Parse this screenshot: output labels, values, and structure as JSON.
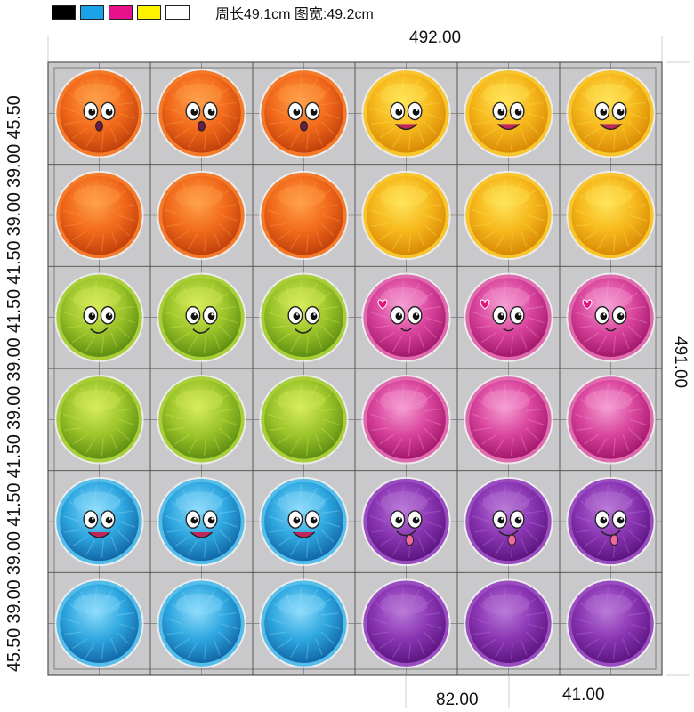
{
  "header": {
    "color_swatches": [
      "#000000",
      "#1aa3e8",
      "#e8118c",
      "#fff200",
      "#ffffff"
    ],
    "size_note": "周长49.1cm  图宽:49.2cm"
  },
  "dimensions": {
    "total_width": "492.00",
    "total_height": "491.00",
    "cell_width": "82.00",
    "half_cell_width": "41.00",
    "left_column_label": "45.50 39.00 39.00 41.50 41.50 39.00 39.00 41.50 41.50 39.00 39.00 45.50"
  },
  "board": {
    "rows": 6,
    "columns": 6,
    "sticker_palettes": {
      "orange": {
        "light": "#ffa14a",
        "mid": "#f26a1b",
        "dark": "#c2410c",
        "rim": "#f47a2a"
      },
      "yellow": {
        "light": "#ffe45a",
        "mid": "#f6b81b",
        "dark": "#d98a06",
        "rim": "#f8c52c"
      },
      "green": {
        "light": "#d7ec5a",
        "mid": "#9cc52a",
        "dark": "#5f8f12",
        "rim": "#a8ce38"
      },
      "pink": {
        "light": "#f59fd3",
        "mid": "#d9449c",
        "dark": "#a3186c",
        "rim": "#e06aae"
      },
      "blue": {
        "light": "#8fdcfb",
        "mid": "#2ea7e0",
        "dark": "#1268a8",
        "rim": "#55bde9"
      },
      "purple": {
        "light": "#b97ad8",
        "mid": "#8a35b3",
        "dark": "#5c1680",
        "rim": "#9a4dc0"
      }
    },
    "sticker_rows": [
      {
        "left": "orange",
        "right": "yellow",
        "left_face": "surprised",
        "right_face": "smiling"
      },
      {
        "left": "orange",
        "right": "yellow",
        "left_face": "none",
        "right_face": "none"
      },
      {
        "left": "green",
        "right": "pink",
        "left_face": "grinning",
        "right_face": "heart"
      },
      {
        "left": "green",
        "right": "pink",
        "left_face": "none",
        "right_face": "none"
      },
      {
        "left": "blue",
        "right": "purple",
        "left_face": "smiling",
        "right_face": "tongue"
      },
      {
        "left": "blue",
        "right": "purple",
        "left_face": "none",
        "right_face": "none"
      }
    ]
  }
}
